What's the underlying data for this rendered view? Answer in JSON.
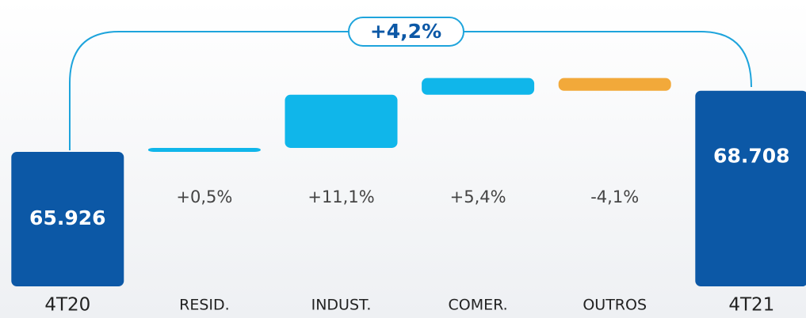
{
  "chart_data": {
    "type": "waterfall",
    "categories": [
      "4T20",
      "RESID.",
      "INDUST.",
      "COMER.",
      "OUTROS",
      "4T21"
    ],
    "measures": [
      "total",
      "relative",
      "relative",
      "relative",
      "relative",
      "total"
    ],
    "values": [
      65926,
      180,
      2420,
      760,
      -580,
      68708
    ],
    "value_labels": [
      "65.926",
      null,
      null,
      null,
      null,
      "68.708"
    ],
    "growth_labels": [
      null,
      "+0,5%",
      "+11,1%",
      "+5,4%",
      "-4,1%",
      null
    ],
    "annotation": "+4,2%",
    "colors": {
      "total": "#0c58a6",
      "increase": "#10b6ea",
      "decrease": "#f2a93a"
    },
    "ylim": [
      59800,
      71400
    ]
  }
}
